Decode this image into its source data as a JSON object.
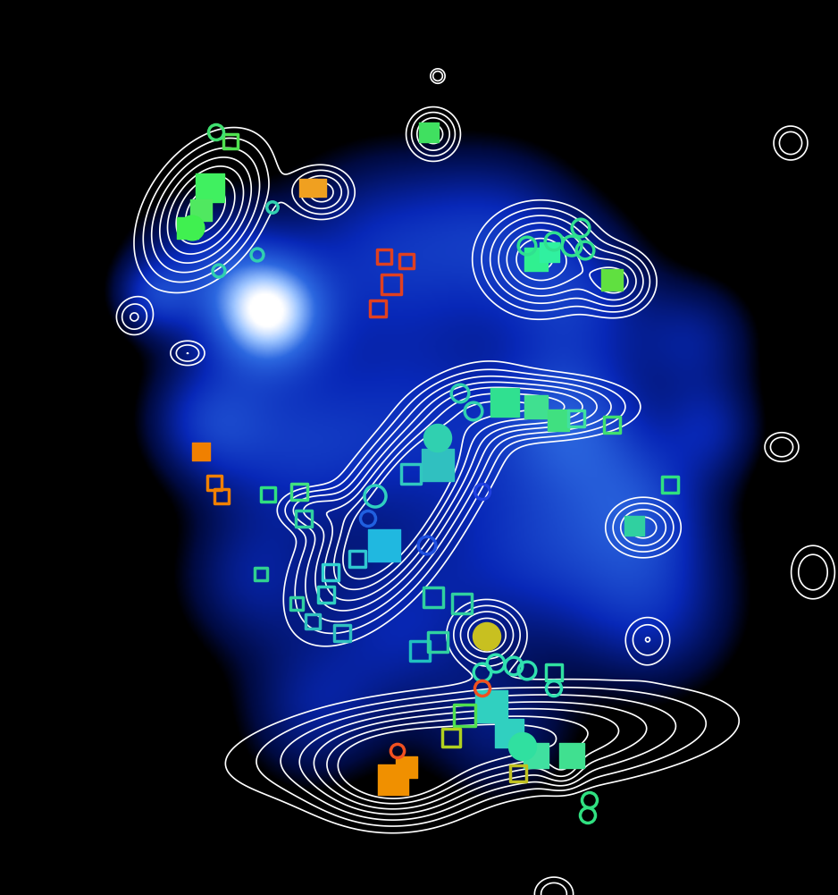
{
  "chart_data": {
    "type": "scatter",
    "tick_labels": false,
    "xlim": [
      0,
      938
    ],
    "ylim": [
      1001,
      0
    ],
    "emission": {
      "x": [
        300,
        230,
        420,
        560,
        650,
        230,
        330,
        480,
        640,
        720,
        780,
        730,
        600,
        450,
        280,
        350,
        170,
        560,
        800
      ],
      "y": [
        350,
        300,
        280,
        260,
        330,
        470,
        500,
        480,
        470,
        560,
        380,
        680,
        620,
        700,
        650,
        800,
        330,
        820,
        480
      ],
      "sigma": [
        45,
        60,
        80,
        70,
        60,
        50,
        70,
        90,
        60,
        60,
        50,
        70,
        70,
        70,
        60,
        60,
        30,
        60,
        40
      ],
      "amplitude": [
        1.0,
        0.5,
        0.5,
        0.45,
        0.45,
        0.5,
        0.45,
        0.5,
        0.6,
        0.5,
        0.4,
        0.5,
        0.45,
        0.45,
        0.4,
        0.4,
        0.4,
        0.35,
        0.35
      ],
      "range": [
        0.15,
        1.3
      ]
    },
    "contours": {
      "x": [
        230,
        485,
        360,
        605,
        690,
        600,
        480,
        420,
        350,
        545,
        720,
        540,
        440,
        150,
        725,
        630,
        210,
        910,
        875,
        620,
        885,
        490
      ],
      "y": [
        235,
        150,
        215,
        290,
        315,
        455,
        520,
        610,
        570,
        710,
        590,
        830,
        870,
        355,
        715,
        860,
        395,
        640,
        500,
        1000,
        160,
        85
      ],
      "sx": [
        50,
        18,
        22,
        38,
        25,
        60,
        65,
        65,
        25,
        25,
        25,
        140,
        50,
        14,
        18,
        14,
        10,
        18,
        12,
        16,
        14,
        6
      ],
      "sy": [
        32,
        18,
        18,
        33,
        22,
        20,
        32,
        35,
        15,
        22,
        20,
        32,
        30,
        14,
        18,
        14,
        14,
        22,
        14,
        14,
        14,
        6
      ],
      "angle": [
        125,
        0,
        0,
        0,
        0,
        0,
        130,
        130,
        0,
        0,
        0,
        -5,
        0,
        0,
        0,
        0,
        90,
        0,
        90,
        0,
        0,
        0
      ],
      "amplitude": [
        1.0,
        0.5,
        0.5,
        0.9,
        0.6,
        0.8,
        1.0,
        1.0,
        0.4,
        0.6,
        0.5,
        1.0,
        0.9,
        0.3,
        0.3,
        0.3,
        0.3,
        0.3,
        0.3,
        0.3,
        0.3,
        0.3
      ],
      "levels": [
        0.12,
        0.2,
        0.3,
        0.42,
        0.55,
        0.7,
        0.85
      ],
      "color": "#ffffff"
    },
    "series": [
      {
        "marker": "square",
        "x": [
          235,
          225,
          210,
          345,
          355,
          480,
          600,
          615,
          685,
          225,
          565,
          600,
          625,
          490,
          430,
          710,
          550,
          570,
          600,
          640,
          440,
          455
        ],
        "y": [
          210,
          235,
          255,
          210,
          210,
          148,
          290,
          282,
          313,
          505,
          450,
          455,
          470,
          520,
          610,
          588,
          790,
          820,
          845,
          845,
          872,
          858
        ],
        "colors": [
          "#40f060",
          "#50e860",
          "#40f050",
          "#f0a020",
          "#f0a020",
          "#40e060",
          "#30f090",
          "#30f0a0",
          "#60e040",
          "#f08000",
          "#30e090",
          "#40e090",
          "#40e080",
          "#30c0c0",
          "#20b8e0",
          "#30d0a0",
          "#30d0c0",
          "#30d0c0",
          "#40e0a0",
          "#40e090",
          "#f09000",
          "#f09000"
        ],
        "sizes": [
          500,
          300,
          300,
          200,
          200,
          250,
          350,
          250,
          300,
          200,
          500,
          350,
          300,
          700,
          700,
          250,
          700,
          500,
          400,
          400,
          600,
          300
        ]
      },
      {
        "marker": "square_open",
        "x": [
          258,
          430,
          455,
          438,
          423,
          240,
          248,
          645,
          460,
          400,
          370,
          365,
          340,
          335,
          292,
          350,
          383,
          470,
          490,
          517,
          485,
          750,
          685,
          520,
          620,
          580,
          505,
          300,
          332
        ],
        "y": [
          158,
          287,
          292,
          318,
          345,
          540,
          555,
          468,
          530,
          625,
          640,
          665,
          580,
          550,
          642,
          695,
          708,
          728,
          718,
          675,
          668,
          542,
          475,
          800,
          752,
          865,
          825,
          553,
          675
        ],
        "colors": [
          "#50e050",
          "#e04020",
          "#e04020",
          "#e04020",
          "#e04020",
          "#f08000",
          "#f08000",
          "#40e0a0",
          "#30c8c0",
          "#30c8d0",
          "#30d0d0",
          "#30d0c0",
          "#30d0a0",
          "#40e080",
          "#30d090",
          "#30c0c0",
          "#30c0c0",
          "#20c0c0",
          "#30d0a0",
          "#30d0a0",
          "#30d0a0",
          "#30e080",
          "#40e070",
          "#50e050",
          "#30e0a0",
          "#c0c020",
          "#b0d020",
          "#30e080",
          "#30d0a0"
        ],
        "sizes": [
          120,
          120,
          120,
          250,
          150,
          120,
          120,
          150,
          250,
          150,
          150,
          150,
          150,
          150,
          100,
          120,
          150,
          250,
          250,
          250,
          250,
          150,
          150,
          300,
          150,
          150,
          200,
          120,
          100
        ]
      },
      {
        "marker": "circle",
        "x": [
          545,
          490,
          215,
          585
        ],
        "y": [
          712,
          490,
          255,
          835
        ],
        "colors": [
          "#c8c020",
          "#30d0b0",
          "#40f050",
          "#30e0a0"
        ],
        "sizes": [
          500,
          500,
          400,
          500
        ]
      },
      {
        "marker": "circle_open",
        "x": [
          242,
          245,
          305,
          288,
          590,
          620,
          640,
          650,
          655,
          515,
          530,
          420,
          540,
          478,
          412,
          540,
          555,
          575,
          590,
          620,
          660,
          658,
          445,
          540
        ],
        "y": [
          148,
          303,
          232,
          285,
          275,
          270,
          275,
          255,
          280,
          440,
          460,
          555,
          550,
          610,
          580,
          752,
          742,
          745,
          750,
          770,
          895,
          912,
          840,
          770
        ],
        "colors": [
          "#40e070",
          "#30d0b0",
          "#30d0b0",
          "#30d0b0",
          "#30e090",
          "#30e090",
          "#30e090",
          "#30e090",
          "#30e090",
          "#30d0b0",
          "#30d0b0",
          "#30d0c0",
          "#2040e0",
          "#2050e0",
          "#2060e0",
          "#30e0b0",
          "#30e0b0",
          "#30e0b0",
          "#30e0b0",
          "#30e0b0",
          "#30e080",
          "#30e080",
          "#f05020",
          "#f05020"
        ],
        "sizes": [
          150,
          100,
          80,
          100,
          200,
          200,
          250,
          200,
          200,
          200,
          200,
          300,
          150,
          200,
          150,
          200,
          200,
          200,
          200,
          150,
          150,
          150,
          120,
          150
        ]
      }
    ]
  }
}
